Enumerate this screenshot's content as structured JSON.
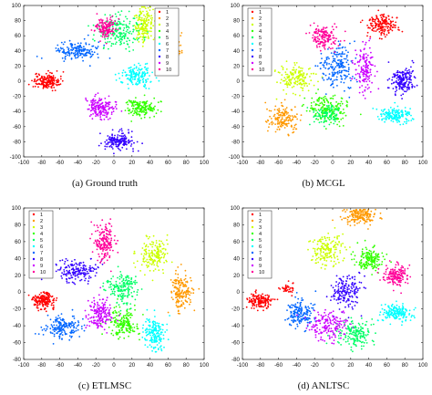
{
  "figure": {
    "captions": [
      "(a)  Ground truth",
      "(b)  MCGL",
      "(c)  ETLMSC",
      "(d)  ANLTSC"
    ]
  },
  "chart_data": [
    {
      "type": "scatter",
      "title": "",
      "caption": "(a)  Ground truth",
      "xlim": [
        -100,
        100
      ],
      "ylim": [
        -100,
        100
      ],
      "xticks": [
        -100,
        -80,
        -60,
        -40,
        -20,
        0,
        20,
        40,
        60,
        80,
        100
      ],
      "yticks": [
        -100,
        -80,
        -60,
        -40,
        -20,
        0,
        20,
        40,
        60,
        80,
        100
      ],
      "legend": {
        "placement": "top-right",
        "entries": [
          "1",
          "2",
          "3",
          "4",
          "5",
          "6",
          "7",
          "8",
          "9",
          "10"
        ]
      },
      "series": [
        {
          "name": "1",
          "color": "#ff0000",
          "clusters": [
            {
              "cx": -75,
              "cy": 0,
              "sx": 7,
              "sy": 5,
              "n": 170
            }
          ]
        },
        {
          "name": "2",
          "color": "#ff9900",
          "clusters": [
            {
              "cx": 65,
              "cy": 45,
              "sx": 5,
              "sy": 8,
              "n": 170
            }
          ]
        },
        {
          "name": "3",
          "color": "#ccff00",
          "clusters": [
            {
              "cx": 33,
              "cy": 75,
              "sx": 5,
              "sy": 11,
              "n": 170
            }
          ]
        },
        {
          "name": "4",
          "color": "#33ff00",
          "clusters": [
            {
              "cx": 30,
              "cy": -35,
              "sx": 9,
              "sy": 6,
              "n": 170
            }
          ]
        },
        {
          "name": "5",
          "color": "#00ff66",
          "clusters": [
            {
              "cx": 5,
              "cy": 65,
              "sx": 12,
              "sy": 11,
              "n": 190
            }
          ]
        },
        {
          "name": "6",
          "color": "#00ffff",
          "clusters": [
            {
              "cx": 25,
              "cy": 7,
              "sx": 9,
              "sy": 7,
              "n": 170
            }
          ]
        },
        {
          "name": "7",
          "color": "#0066ff",
          "clusters": [
            {
              "cx": -40,
              "cy": 40,
              "sx": 12,
              "sy": 6,
              "n": 170
            }
          ]
        },
        {
          "name": "8",
          "color": "#3300ff",
          "clusters": [
            {
              "cx": 5,
              "cy": -80,
              "sx": 8,
              "sy": 6,
              "n": 170
            }
          ]
        },
        {
          "name": "9",
          "color": "#cc00ff",
          "clusters": [
            {
              "cx": -15,
              "cy": -35,
              "sx": 8,
              "sy": 7,
              "n": 170
            }
          ]
        },
        {
          "name": "10",
          "color": "#ff0099",
          "clusters": [
            {
              "cx": -10,
              "cy": 70,
              "sx": 6,
              "sy": 7,
              "n": 140
            }
          ]
        }
      ]
    },
    {
      "type": "scatter",
      "title": "",
      "caption": "(b)  MCGL",
      "xlim": [
        -100,
        100
      ],
      "ylim": [
        -100,
        100
      ],
      "xticks": [
        -100,
        -80,
        -60,
        -40,
        -20,
        0,
        20,
        40,
        60,
        80,
        100
      ],
      "yticks": [
        -100,
        -80,
        -60,
        -40,
        -20,
        0,
        20,
        40,
        60,
        80,
        100
      ],
      "legend": {
        "placement": "top-left",
        "entries": [
          "1",
          "2",
          "3",
          "4",
          "5",
          "6",
          "7",
          "8",
          "9",
          "10"
        ]
      },
      "series": [
        {
          "name": "1",
          "color": "#ff0000",
          "clusters": [
            {
              "cx": 55,
              "cy": 75,
              "sx": 8,
              "sy": 7,
              "n": 170
            }
          ]
        },
        {
          "name": "2",
          "color": "#ff9900",
          "clusters": [
            {
              "cx": -55,
              "cy": -50,
              "sx": 8,
              "sy": 9,
              "n": 170
            }
          ]
        },
        {
          "name": "3",
          "color": "#ccff00",
          "clusters": [
            {
              "cx": -40,
              "cy": 5,
              "sx": 9,
              "sy": 8,
              "n": 170
            }
          ]
        },
        {
          "name": "4",
          "color": "#33ff00",
          "clusters": [
            {
              "cx": -5,
              "cy": -38,
              "sx": 11,
              "sy": 9,
              "n": 190
            }
          ]
        },
        {
          "name": "5",
          "color": "#00ff66",
          "clusters": [
            {
              "cx": -5,
              "cy": -45,
              "sx": 7,
              "sy": 6,
              "n": 90
            }
          ]
        },
        {
          "name": "6",
          "color": "#00ffff",
          "clusters": [
            {
              "cx": 70,
              "cy": -45,
              "sx": 9,
              "sy": 5,
              "n": 170
            }
          ]
        },
        {
          "name": "7",
          "color": "#0066ff",
          "clusters": [
            {
              "cx": 5,
              "cy": 20,
              "sx": 10,
              "sy": 15,
              "n": 190
            }
          ]
        },
        {
          "name": "8",
          "color": "#3300ff",
          "clusters": [
            {
              "cx": 78,
              "cy": 0,
              "sx": 7,
              "sy": 9,
              "n": 170
            }
          ]
        },
        {
          "name": "9",
          "color": "#cc00ff",
          "clusters": [
            {
              "cx": 35,
              "cy": 15,
              "sx": 5,
              "sy": 16,
              "n": 150
            }
          ]
        },
        {
          "name": "10",
          "color": "#ff0099",
          "clusters": [
            {
              "cx": -10,
              "cy": 58,
              "sx": 8,
              "sy": 8,
              "n": 150
            }
          ]
        }
      ]
    },
    {
      "type": "scatter",
      "title": "",
      "caption": "(c)  ETLMSC",
      "xlim": [
        -100,
        100
      ],
      "ylim": [
        -80,
        100
      ],
      "xticks": [
        -100,
        -80,
        -60,
        -40,
        -20,
        0,
        20,
        40,
        60,
        80,
        100
      ],
      "yticks": [
        -80,
        -60,
        -40,
        -20,
        0,
        20,
        40,
        60,
        80,
        100
      ],
      "legend": {
        "placement": "top-left",
        "entries": [
          "1",
          "2",
          "3",
          "4",
          "5",
          "6",
          "7",
          "8",
          "9",
          "10"
        ]
      },
      "series": [
        {
          "name": "1",
          "color": "#ff0000",
          "clusters": [
            {
              "cx": -78,
              "cy": -10,
              "sx": 6,
              "sy": 5,
              "n": 170
            }
          ]
        },
        {
          "name": "2",
          "color": "#ff9900",
          "clusters": [
            {
              "cx": 75,
              "cy": 0,
              "sx": 7,
              "sy": 12,
              "n": 170
            }
          ]
        },
        {
          "name": "3",
          "color": "#ccff00",
          "clusters": [
            {
              "cx": 45,
              "cy": 45,
              "sx": 8,
              "sy": 10,
              "n": 170
            }
          ]
        },
        {
          "name": "4",
          "color": "#33ff00",
          "clusters": [
            {
              "cx": 10,
              "cy": -38,
              "sx": 8,
              "sy": 9,
              "n": 170
            }
          ]
        },
        {
          "name": "5",
          "color": "#00ff66",
          "clusters": [
            {
              "cx": 10,
              "cy": 5,
              "sx": 9,
              "sy": 9,
              "n": 170
            }
          ]
        },
        {
          "name": "6",
          "color": "#00ffff",
          "clusters": [
            {
              "cx": 45,
              "cy": -50,
              "sx": 6,
              "sy": 10,
              "n": 170
            }
          ]
        },
        {
          "name": "7",
          "color": "#0066ff",
          "clusters": [
            {
              "cx": -58,
              "cy": -42,
              "sx": 10,
              "sy": 7,
              "n": 170
            }
          ]
        },
        {
          "name": "8",
          "color": "#3300ff",
          "clusters": [
            {
              "cx": -40,
              "cy": 25,
              "sx": 12,
              "sy": 7,
              "n": 170
            }
          ]
        },
        {
          "name": "9",
          "color": "#cc00ff",
          "clusters": [
            {
              "cx": -15,
              "cy": -25,
              "sx": 7,
              "sy": 9,
              "n": 170
            }
          ]
        },
        {
          "name": "10",
          "color": "#ff0099",
          "clusters": [
            {
              "cx": -10,
              "cy": 60,
              "sx": 6,
              "sy": 12,
              "n": 170
            }
          ]
        }
      ]
    },
    {
      "type": "scatter",
      "title": "",
      "caption": "(d)  ANLTSC",
      "xlim": [
        -100,
        100
      ],
      "ylim": [
        -80,
        100
      ],
      "xticks": [
        -100,
        -80,
        -60,
        -40,
        -20,
        0,
        20,
        40,
        60,
        80,
        100
      ],
      "yticks": [
        -80,
        -60,
        -40,
        -20,
        0,
        20,
        40,
        60,
        80,
        100
      ],
      "legend": {
        "placement": "top-left",
        "entries": [
          "1",
          "2",
          "3",
          "4",
          "5",
          "6",
          "7",
          "8",
          "9",
          "10"
        ]
      },
      "series": [
        {
          "name": "1",
          "color": "#ff0000",
          "clusters": [
            {
              "cx": -80,
              "cy": -10,
              "sx": 7,
              "sy": 5,
              "n": 150
            },
            {
              "cx": -50,
              "cy": 5,
              "sx": 4,
              "sy": 3,
              "n": 40
            }
          ]
        },
        {
          "name": "2",
          "color": "#ff9900",
          "clusters": [
            {
              "cx": 30,
              "cy": 90,
              "sx": 9,
              "sy": 5,
              "n": 170
            }
          ]
        },
        {
          "name": "3",
          "color": "#ccff00",
          "clusters": [
            {
              "cx": -5,
              "cy": 50,
              "sx": 9,
              "sy": 9,
              "n": 170
            }
          ]
        },
        {
          "name": "4",
          "color": "#33ff00",
          "clusters": [
            {
              "cx": 40,
              "cy": 38,
              "sx": 8,
              "sy": 7,
              "n": 170
            }
          ]
        },
        {
          "name": "5",
          "color": "#00ff66",
          "clusters": [
            {
              "cx": 25,
              "cy": -50,
              "sx": 9,
              "sy": 8,
              "n": 170
            }
          ]
        },
        {
          "name": "6",
          "color": "#00ffff",
          "clusters": [
            {
              "cx": 70,
              "cy": -25,
              "sx": 9,
              "sy": 5,
              "n": 170
            }
          ]
        },
        {
          "name": "7",
          "color": "#0066ff",
          "clusters": [
            {
              "cx": -35,
              "cy": -25,
              "sx": 8,
              "sy": 8,
              "n": 170
            }
          ]
        },
        {
          "name": "8",
          "color": "#3300ff",
          "clusters": [
            {
              "cx": 15,
              "cy": 0,
              "sx": 9,
              "sy": 10,
              "n": 170
            }
          ]
        },
        {
          "name": "9",
          "color": "#cc00ff",
          "clusters": [
            {
              "cx": -5,
              "cy": -40,
              "sx": 11,
              "sy": 8,
              "n": 170
            }
          ]
        },
        {
          "name": "10",
          "color": "#ff0099",
          "clusters": [
            {
              "cx": 70,
              "cy": 20,
              "sx": 7,
              "sy": 6,
              "n": 160
            }
          ]
        }
      ]
    }
  ]
}
